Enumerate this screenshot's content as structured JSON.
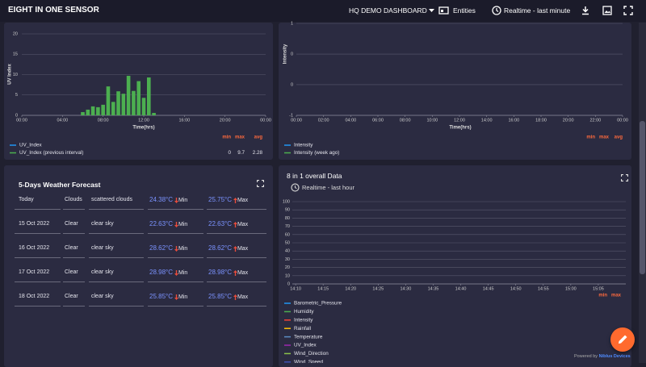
{
  "header": {
    "title": "EIGHT IN ONE SENSOR",
    "dashboard": "HQ DEMO DASHBOARD",
    "entities": "Entities",
    "timewindow": "Realtime - last minute"
  },
  "chart_data": [
    {
      "type": "bar",
      "ylabel": "UV Index",
      "xlabel": "Time(hrs)",
      "xlim": [
        0,
        24
      ],
      "xticks": [
        {
          "value": 0,
          "label": "00:00"
        },
        {
          "value": 4,
          "label": "04:00"
        },
        {
          "value": 8,
          "label": "08:00"
        },
        {
          "value": 12,
          "label": "12:00"
        },
        {
          "value": 16,
          "label": "16:00"
        },
        {
          "value": 20,
          "label": "20:00"
        },
        {
          "value": 24,
          "label": "00:00"
        }
      ],
      "ylim": [
        0,
        20
      ],
      "yticks": [
        0,
        5,
        10,
        15,
        20
      ],
      "grid": true,
      "legend_columns": [
        "min",
        "max",
        "avg"
      ],
      "x": [
        6,
        6.5,
        7,
        7.5,
        8,
        8.5,
        9,
        9.5,
        10,
        10.5,
        11,
        11.5,
        12,
        12.5,
        13
      ],
      "series": [
        {
          "name": "UV_Index",
          "color": "#2196f3"
        },
        {
          "name": "UV_Index (previous interval)",
          "color": "#4caf50",
          "values": [
            0.8,
            1.4,
            2.2,
            2,
            2.6,
            7.1,
            3.3,
            5.9,
            5.3,
            9.7,
            6,
            8.4,
            4.3,
            9.3,
            0.6
          ],
          "stats": [
            0,
            9.7,
            2.28
          ]
        }
      ]
    },
    {
      "type": "line",
      "ylabel": "Intensity",
      "xlabel": "Time(hrs)",
      "xlim": [
        0,
        24
      ],
      "xticks": [
        {
          "value": 0,
          "label": "00:00"
        },
        {
          "value": 2,
          "label": "02:00"
        },
        {
          "value": 4,
          "label": "04:00"
        },
        {
          "value": 6,
          "label": "06:00"
        },
        {
          "value": 8,
          "label": "08:00"
        },
        {
          "value": 10,
          "label": "10:00"
        },
        {
          "value": 12,
          "label": "12:00"
        },
        {
          "value": 14,
          "label": "14:00"
        },
        {
          "value": 16,
          "label": "16:00"
        },
        {
          "value": 18,
          "label": "18:00"
        },
        {
          "value": 20,
          "label": "20:00"
        },
        {
          "value": 22,
          "label": "22:00"
        },
        {
          "value": 24,
          "label": "00:00"
        }
      ],
      "ylim": [
        -1,
        1
      ],
      "yticks": [
        -1,
        {
          "value": -0.333,
          "label": "0"
        },
        {
          "value": 0.333,
          "label": "0"
        },
        1
      ],
      "grid": true,
      "legend_columns": [
        "min",
        "max",
        "avg"
      ],
      "series": [
        {
          "name": "Intensity",
          "color": "#2196f3"
        },
        {
          "name": "Intensity (week ago)",
          "color": "#4caf50"
        }
      ]
    },
    {
      "type": "line",
      "title": "8 in 1 overall Data",
      "timewindow": "Realtime - last hour",
      "xlim": [
        849.4,
        910
      ],
      "xticks": [
        {
          "value": 850,
          "label": "14:10"
        },
        {
          "value": 855,
          "label": "14:15"
        },
        {
          "value": 860,
          "label": "14:20"
        },
        {
          "value": 865,
          "label": "14:25"
        },
        {
          "value": 870,
          "label": "14:30"
        },
        {
          "value": 875,
          "label": "14:35"
        },
        {
          "value": 880,
          "label": "14:40"
        },
        {
          "value": 885,
          "label": "14:45"
        },
        {
          "value": 890,
          "label": "14:50"
        },
        {
          "value": 895,
          "label": "14:55"
        },
        {
          "value": 900,
          "label": "15:00"
        },
        {
          "value": 905,
          "label": "15:05"
        }
      ],
      "ylim": [
        0,
        100
      ],
      "yticks": [
        0,
        10,
        20,
        30,
        40,
        50,
        60,
        70,
        80,
        90,
        100
      ],
      "grid": true,
      "legend_columns": [
        "min",
        "max"
      ],
      "series": [
        {
          "name": "Barometric_Pressure",
          "color": "#2196f3"
        },
        {
          "name": "Humidity",
          "color": "#4caf50"
        },
        {
          "name": "Intensity",
          "color": "#f44336"
        },
        {
          "name": "Rainfall",
          "color": "#ffc107"
        },
        {
          "name": "Temperature",
          "color": "#5c8dc4"
        },
        {
          "name": "UV_Index",
          "color": "#9c27b0"
        },
        {
          "name": "Wind_Direction",
          "color": "#8bc34a"
        },
        {
          "name": "Wind_Speed",
          "color": "#3f51b5"
        }
      ]
    }
  ],
  "forecast": {
    "title": "5-Days Weather Forecast",
    "rows": [
      {
        "date": "Today",
        "main": "Clouds",
        "desc": "scattered clouds",
        "min": "24.38°C",
        "min_label": "Min",
        "max": "25.75°C",
        "max_label": "Max"
      },
      {
        "date": "15 Oct 2022",
        "main": "Clear",
        "desc": "clear sky",
        "min": "22.63°C",
        "min_label": "Min",
        "max": "22.63°C",
        "max_label": "Max"
      },
      {
        "date": "16 Oct 2022",
        "main": "Clear",
        "desc": "clear sky",
        "min": "28.62°C",
        "min_label": "Min",
        "max": "28.62°C",
        "max_label": "Max"
      },
      {
        "date": "17 Oct 2022",
        "main": "Clear",
        "desc": "clear sky",
        "min": "28.98°C",
        "min_label": "Min",
        "max": "28.98°C",
        "max_label": "Max"
      },
      {
        "date": "18 Oct 2022",
        "main": "Clear",
        "desc": "clear sky",
        "min": "25.85°C",
        "min_label": "Min",
        "max": "25.85°C",
        "max_label": "Max"
      }
    ]
  },
  "footer": {
    "powered_by": "Powered by",
    "brand": "Niblus Devices"
  }
}
